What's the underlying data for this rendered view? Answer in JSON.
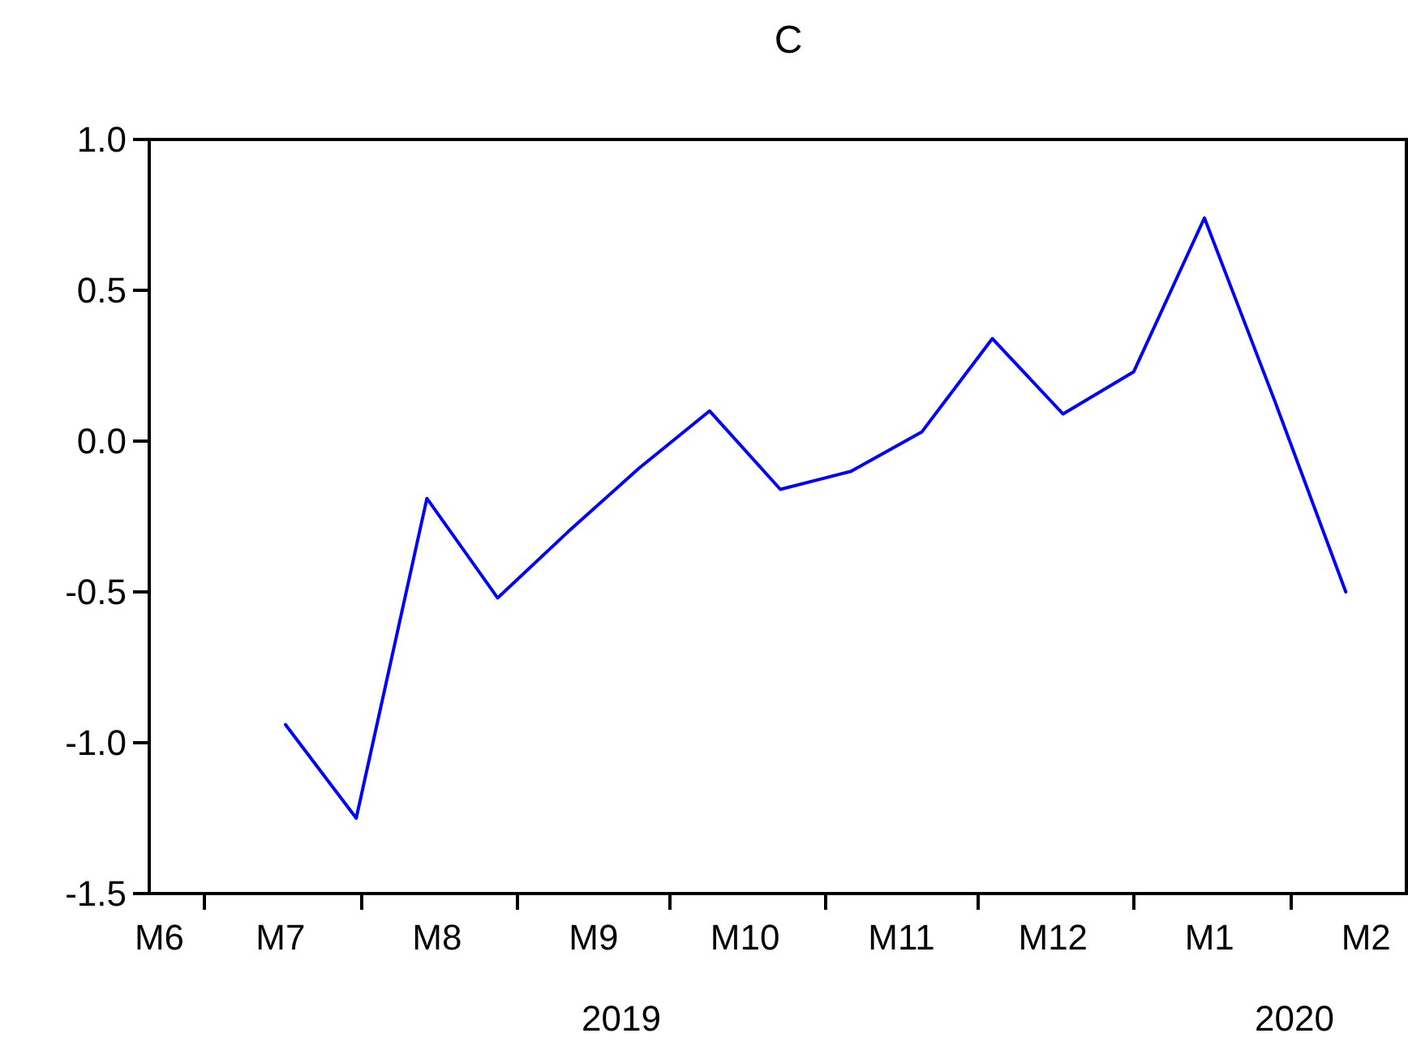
{
  "chart_data": {
    "type": "line",
    "title": "C",
    "x": [
      "2019-07-17",
      "2019-07-31",
      "2019-08-14",
      "2019-08-28",
      "2019-09-11",
      "2019-09-25",
      "2019-10-09",
      "2019-10-23",
      "2019-11-06",
      "2019-11-20",
      "2019-12-04",
      "2019-12-18",
      "2020-01-01",
      "2020-01-15",
      "2020-01-29",
      "2020-02-12"
    ],
    "series": [
      {
        "color": "#0000ff",
        "values": [
          -0.94,
          -1.25,
          -0.19,
          -0.52,
          -0.3,
          -0.09,
          0.1,
          -0.16,
          -0.1,
          0.03,
          0.34,
          0.09,
          0.23,
          0.74,
          0.13,
          -0.5
        ]
      }
    ],
    "xlim": [
      "2019-06-20",
      "2020-02-24"
    ],
    "xticks": [
      {
        "value": "2019-07-01",
        "label": null
      },
      {
        "value": "2019-08-01",
        "label": null
      },
      {
        "value": "2019-09-01",
        "label": null
      },
      {
        "value": "2019-10-01",
        "label": null
      },
      {
        "value": "2019-11-01",
        "label": null
      },
      {
        "value": "2019-12-01",
        "label": null
      },
      {
        "value": "2020-01-01",
        "label": null
      },
      {
        "value": "2020-02-01",
        "label": null
      },
      {
        "value": "2019-06-22",
        "label": "M6"
      },
      {
        "value": "2019-07-16",
        "label": "M7"
      },
      {
        "value": "2019-08-16",
        "label": "M8"
      },
      {
        "value": "2019-09-16",
        "label": "M9"
      },
      {
        "value": "2019-10-16",
        "label": "M10"
      },
      {
        "value": "2019-11-16",
        "label": "M11"
      },
      {
        "value": "2019-12-16",
        "label": "M12"
      },
      {
        "value": "2020-01-16",
        "label": "M1"
      },
      {
        "value": "2020-02-16",
        "label": "M2"
      }
    ],
    "ylim": [
      -1.5,
      1.0
    ],
    "yticks": [
      {
        "value": -1.5,
        "label": "-1.5"
      },
      {
        "value": -1.0,
        "label": "-1.0"
      },
      {
        "value": -0.5,
        "label": "-0.5"
      },
      {
        "value": 0,
        "label": "0.0"
      },
      {
        "value": 0.5,
        "label": "0.5"
      },
      {
        "value": 1.0,
        "label": "1.0"
      }
    ],
    "annotations": [
      "2019",
      "2020"
    ],
    "marker": "none",
    "line_style": "solid"
  }
}
